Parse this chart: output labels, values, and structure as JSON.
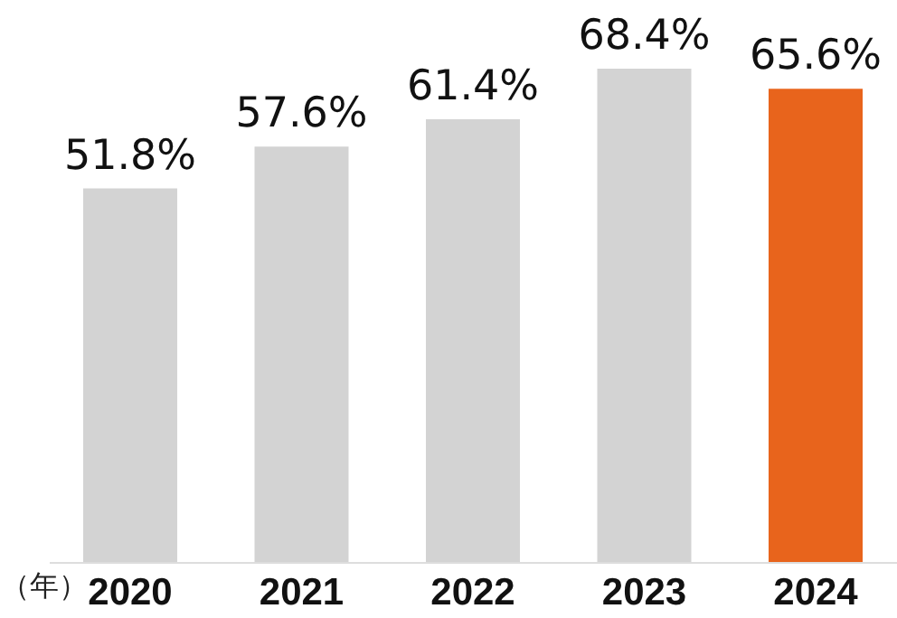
{
  "chart_data": {
    "type": "bar",
    "xlabel": "（年）",
    "categories": [
      "2020",
      "2021",
      "2022",
      "2023",
      "2024"
    ],
    "values": [
      51.8,
      57.6,
      61.4,
      68.4,
      65.6
    ],
    "colors": [
      "#d3d3d3",
      "#d3d3d3",
      "#d3d3d3",
      "#d3d3d3",
      "#e8641c"
    ],
    "value_labels": [
      "51.8%",
      "57.6%",
      "61.4%",
      "68.4%",
      "65.6%"
    ]
  }
}
